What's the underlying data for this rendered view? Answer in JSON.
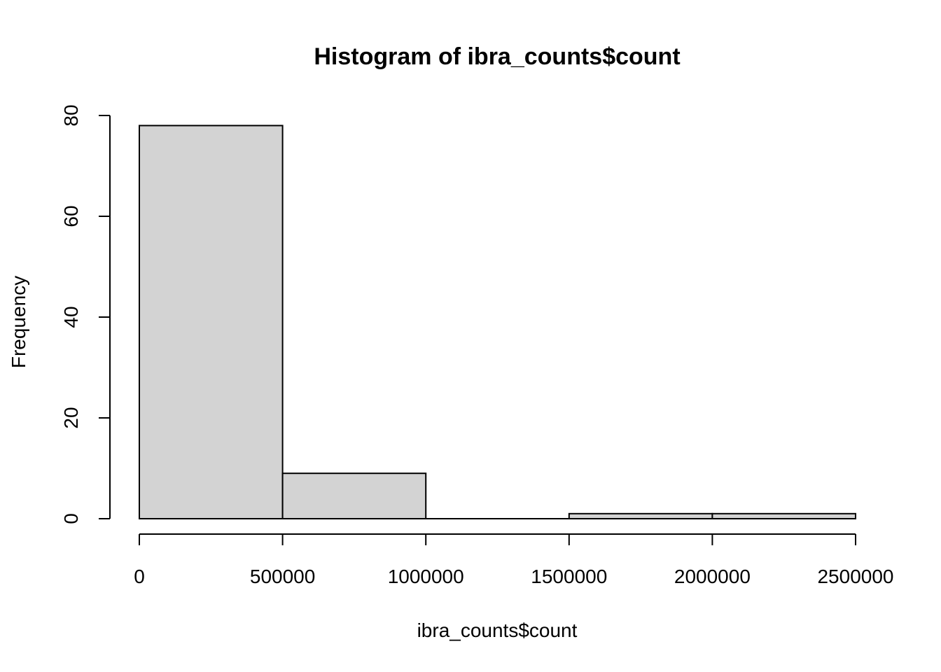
{
  "chart_data": {
    "type": "bar",
    "title": "Histogram of ibra_counts$count",
    "xlabel": "ibra_counts$count",
    "ylabel": "Frequency",
    "bins": [
      {
        "from": 0,
        "to": 500000,
        "count": 78
      },
      {
        "from": 500000,
        "to": 1000000,
        "count": 9
      },
      {
        "from": 1000000,
        "to": 1500000,
        "count": 0
      },
      {
        "from": 1500000,
        "to": 2000000,
        "count": 1
      },
      {
        "from": 2000000,
        "to": 2500000,
        "count": 1
      }
    ],
    "xlim": [
      0,
      2500000
    ],
    "ylim": [
      0,
      80
    ],
    "x_ticks": [
      0,
      500000,
      1000000,
      1500000,
      2000000,
      2500000
    ],
    "x_tick_labels": [
      "0",
      "500000",
      "1000000",
      "1500000",
      "2000000",
      "2500000"
    ],
    "y_ticks": [
      0,
      20,
      40,
      60,
      80
    ],
    "y_tick_labels": [
      "0",
      "20",
      "40",
      "60",
      "80"
    ],
    "bar_fill": "#d3d3d3",
    "bar_stroke": "#000000",
    "grid": false
  }
}
